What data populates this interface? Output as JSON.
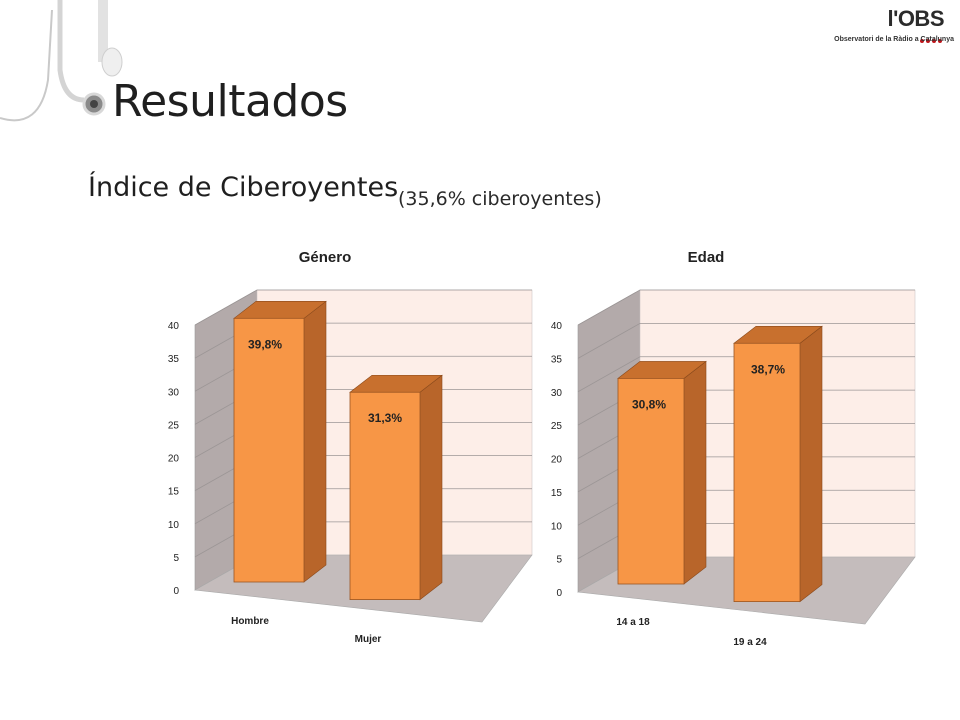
{
  "slide": {
    "title": "Resultados",
    "subtitle": "Índice de Ciberoyentes",
    "subnote": "(35,6% ciberoyentes)"
  },
  "logo": {
    "name": "l'OBS",
    "tagline": "Observatori de la Ràdio a Catalunya",
    "accent": "#c0161c"
  },
  "colors": {
    "bar_front": "#f79646",
    "bar_side": "#b8652a",
    "bar_top": "#c8702e",
    "back_wall": "#fdeee8",
    "side_wall": "#b3aaaa",
    "floor": "#c4bcbc"
  },
  "chart_data": [
    {
      "type": "bar",
      "title": "Género",
      "categories": [
        "Hombre",
        "Mujer"
      ],
      "values": [
        39.8,
        31.3
      ],
      "data_labels": [
        "39,8%",
        "31,3%"
      ],
      "yticks": [
        "0",
        "5",
        "10",
        "15",
        "20",
        "25",
        "30",
        "35",
        "40"
      ],
      "ylim": [
        0,
        40
      ],
      "grid": true,
      "legend": "none",
      "style": "3d-column"
    },
    {
      "type": "bar",
      "title": "Edad",
      "categories": [
        "14 a 18",
        "19 a 24"
      ],
      "values": [
        30.8,
        38.7
      ],
      "data_labels": [
        "30,8%",
        "38,7%"
      ],
      "yticks": [
        "0",
        "5",
        "10",
        "15",
        "20",
        "25",
        "30",
        "35",
        "40"
      ],
      "ylim": [
        0,
        40
      ],
      "grid": true,
      "legend": "none",
      "style": "3d-column"
    }
  ]
}
